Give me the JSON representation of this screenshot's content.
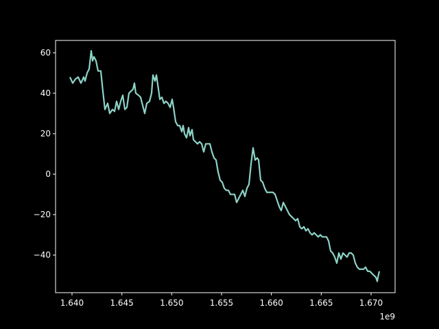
{
  "chart_data": {
    "type": "line",
    "x": [
      1639794000.0,
      1640069000.0,
      1640344000.0,
      1640619000.0,
      1640895000.0,
      1641170000.0,
      1641307000.0,
      1641514000.0,
      1641720000.0,
      1641927000.0,
      1642064000.0,
      1642202000.0,
      1642408000.0,
      1642615000.0,
      1642890000.0,
      1643096000.0,
      1643303000.0,
      1643578000.0,
      1643785000.0,
      1644060000.0,
      1644266000.0,
      1644473000.0,
      1644679000.0,
      1644886000.0,
      1645092000.0,
      1645298000.0,
      1645505000.0,
      1645711000.0,
      1645918000.0,
      1646124000.0,
      1646262000.0,
      1646399000.0,
      1646675000.0,
      1646881000.0,
      1647087000.0,
      1647294000.0,
      1647500000.0,
      1647776000.0,
      1647982000.0,
      1648120000.0,
      1648326000.0,
      1648464000.0,
      1648670000.0,
      1648808000.0,
      1649014000.0,
      1649221000.0,
      1649427000.0,
      1649633000.0,
      1649840000.0,
      1650046000.0,
      1650184000.0,
      1650390000.0,
      1650597000.0,
      1650803000.0,
      1651010000.0,
      1651147000.0,
      1651285000.0,
      1651491000.0,
      1651698000.0,
      1651835000.0,
      1652042000.0,
      1652179000.0,
      1652386000.0,
      1652592000.0,
      1652799000.0,
      1653005000.0,
      1653212000.0,
      1653418000.0,
      1653624000.0,
      1653831000.0,
      1654037000.0,
      1654244000.0,
      1654450000.0,
      1654657000.0,
      1654863000.0,
      1655069000.0,
      1655276000.0,
      1655482000.0,
      1655689000.0,
      1655895000.0,
      1656102000.0,
      1656308000.0,
      1656515000.0,
      1656721000.0,
      1656927000.0,
      1657134000.0,
      1657340000.0,
      1657547000.0,
      1657753000.0,
      1657959000.0,
      1658166000.0,
      1658372000.0,
      1658579000.0,
      1658716000.0,
      1658923000.0,
      1659129000.0,
      1659336000.0,
      1659542000.0,
      1659748000.0,
      1659955000.0,
      1660161000.0,
      1660368000.0,
      1660574000.0,
      1660781000.0,
      1660987000.0,
      1661193000.0,
      1661400000.0,
      1661606000.0,
      1661813000.0,
      1662019000.0,
      1662226000.0,
      1662432000.0,
      1662638000.0,
      1662845000.0,
      1663051000.0,
      1663258000.0,
      1663464000.0,
      1663671000.0,
      1663877000.0,
      1664084000.0,
      1664290000.0,
      1664496000.0,
      1664703000.0,
      1664909000.0,
      1665116000.0,
      1665322000.0,
      1665529000.0,
      1665735000.0,
      1665941000.0,
      1666148000.0,
      1666354000.0,
      1666561000.0,
      1666767000.0,
      1666974000.0,
      1667180000.0,
      1667386000.0,
      1667593000.0,
      1667799000.0,
      1668006000.0,
      1668212000.0,
      1668419000.0,
      1668625000.0,
      1668831000.0,
      1669038000.0,
      1669244000.0,
      1669451000.0,
      1669657000.0,
      1669864000.0,
      1670070000.0,
      1670276000.0,
      1670483000.0,
      1670621000.0,
      1670689000.0,
      1670827000.0
    ],
    "values": [
      48,
      45,
      47,
      48,
      45,
      48,
      46,
      50,
      52,
      61,
      56,
      58,
      56,
      51,
      51,
      41,
      32,
      35,
      30,
      32,
      31,
      36,
      32,
      36,
      39,
      32,
      33,
      40,
      41,
      42,
      45,
      40,
      39,
      38,
      34,
      30,
      35,
      36,
      40,
      49,
      46,
      49,
      42,
      37,
      38,
      35,
      36,
      35,
      33,
      37,
      33,
      26,
      24,
      24,
      21,
      24,
      20,
      18,
      23,
      19,
      22,
      17,
      16,
      15,
      16,
      15,
      11,
      15,
      15,
      15,
      11,
      8,
      7,
      1,
      -3,
      -4,
      -7,
      -8,
      -8,
      -10,
      -10,
      -10,
      -14,
      -12,
      -10,
      -8,
      -11,
      -7,
      -5,
      5,
      13,
      7,
      8,
      7,
      -3,
      -4,
      -7,
      -9,
      -9,
      -9,
      -9,
      -10,
      -13,
      -16,
      -18,
      -14,
      -16,
      -18,
      -20,
      -21,
      -22,
      -23,
      -22,
      -26,
      -27,
      -26,
      -28,
      -27,
      -29,
      -30,
      -29,
      -30,
      -31,
      -30,
      -31,
      -31,
      -31,
      -33,
      -38,
      -39,
      -41,
      -44,
      -39,
      -42,
      -39,
      -40,
      -41,
      -39,
      -39,
      -40,
      -44,
      -46,
      -47,
      -47,
      -47,
      -46,
      -48,
      -48,
      -49,
      -50,
      -51,
      -53,
      -51,
      -48
    ],
    "color": "#8dd3c7",
    "xlim": [
      1638350000.0,
      1672410000.0
    ],
    "xticks": [
      {
        "value": 1640000000.0,
        "label": "1.640"
      },
      {
        "value": 1645000000.0,
        "label": "1.645"
      },
      {
        "value": 1650000000.0,
        "label": "1.650"
      },
      {
        "value": 1655000000.0,
        "label": "1.655"
      },
      {
        "value": 1660000000.0,
        "label": "1.660"
      },
      {
        "value": 1665000000.0,
        "label": "1.665"
      },
      {
        "value": 1670000000.0,
        "label": "1.670"
      }
    ],
    "x_offset_label": "1e9",
    "ylim": [
      -58.6,
      66.1
    ],
    "yticks": [
      {
        "value": -40,
        "label": "−40"
      },
      {
        "value": -20,
        "label": "−20"
      },
      0,
      20,
      40,
      60
    ]
  }
}
